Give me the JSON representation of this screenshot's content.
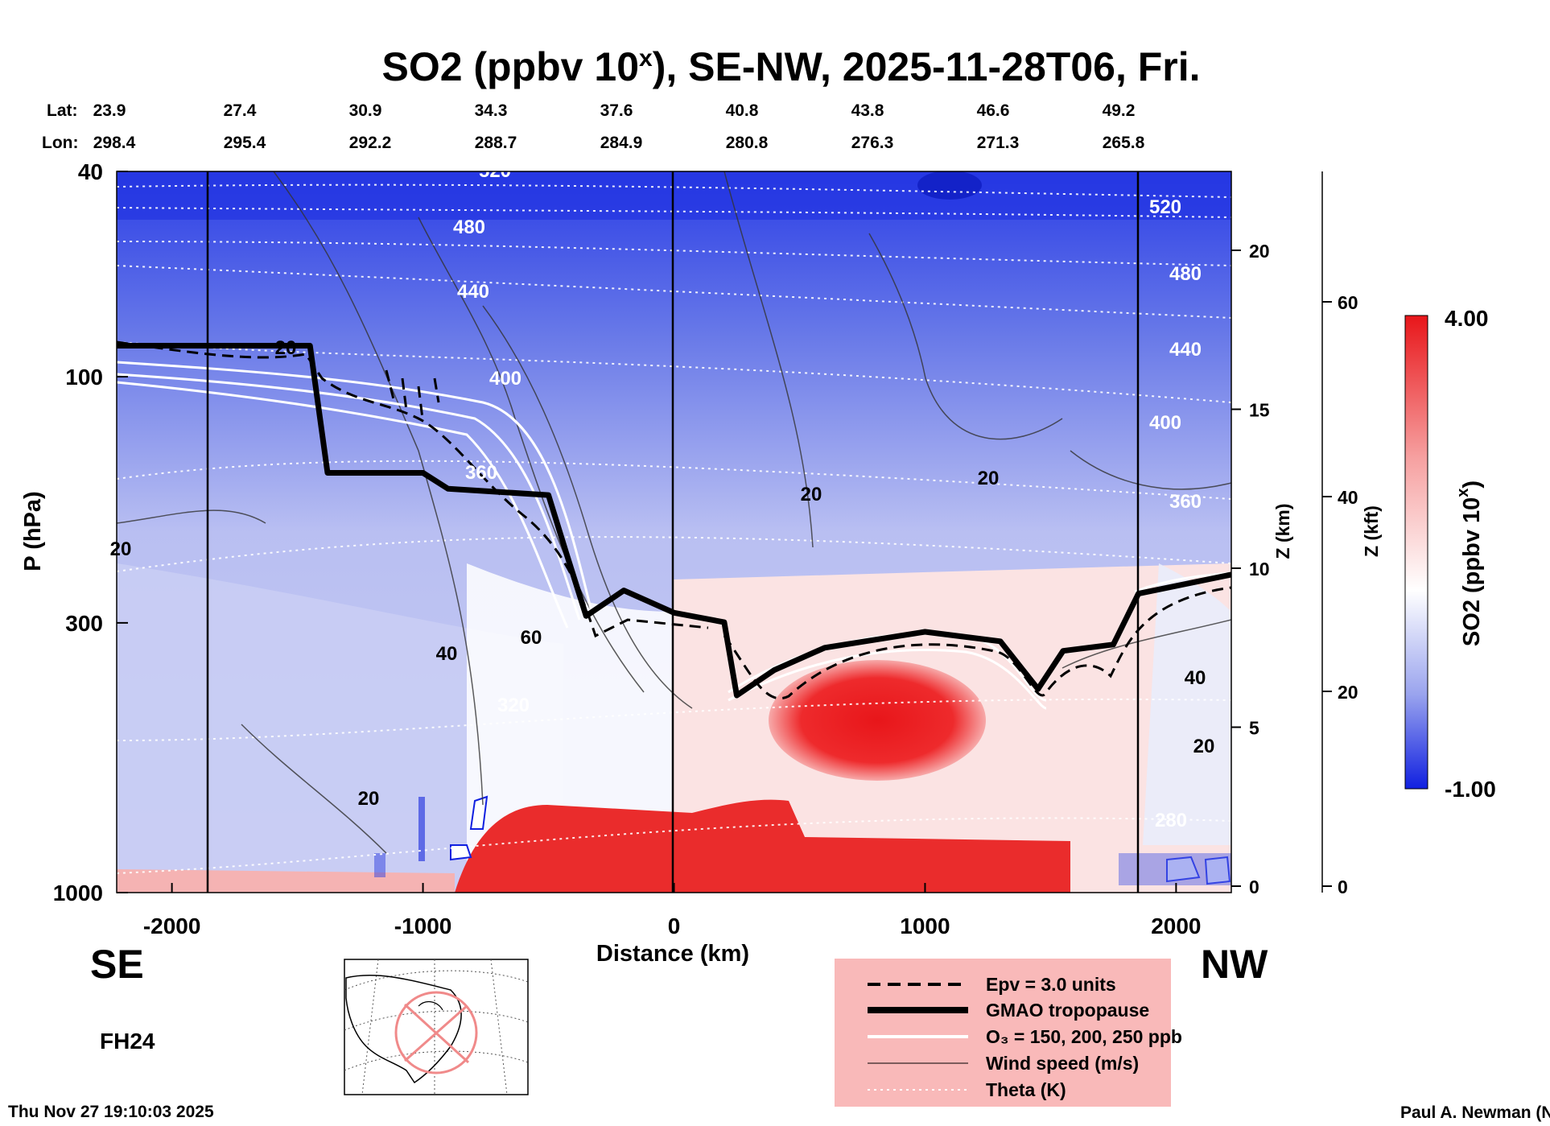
{
  "chart_data": {
    "type": "heatmap",
    "title": "SO2 (ppbv 10^x), SE-NW, 2025-11-28T06, Fri.",
    "title_parts": {
      "main": "SO2 (ppbv 10",
      "sup": "x",
      "rest": "), SE-NW, 2025-11-28T06, Fri."
    },
    "lat_label": "Lat:",
    "lon_label": "Lon:",
    "lat_values": [
      "23.9",
      "27.4",
      "30.9",
      "34.3",
      "37.6",
      "40.8",
      "43.8",
      "46.6",
      "49.2"
    ],
    "lon_values": [
      "298.4",
      "295.4",
      "292.2",
      "288.7",
      "284.9",
      "280.8",
      "276.3",
      "271.3",
      "265.8"
    ],
    "xlabel": "Distance (km)",
    "xlim": [
      -2220,
      2220
    ],
    "xticks": [
      -2000,
      -1000,
      0,
      1000,
      2000
    ],
    "xtick_labels": [
      "-2000",
      "-1000",
      "0",
      "1000",
      "2000"
    ],
    "ylabel": "P (hPa)",
    "ylim": [
      1000,
      40
    ],
    "yticks": [
      40,
      100,
      300,
      1000
    ],
    "ytick_labels": [
      "40",
      "100",
      "300",
      "1000"
    ],
    "z_km_label": "Z (km)",
    "z_km_ticks": [
      0,
      5,
      10,
      15,
      20
    ],
    "z_km_labels": [
      "0",
      "5",
      "10",
      "15",
      "20"
    ],
    "z_kft_label": "Z (kft)",
    "z_kft_ticks": [
      0,
      20,
      40,
      60
    ],
    "z_kft_labels": [
      "0",
      "20",
      "40",
      "60"
    ],
    "colorbar": {
      "label": "SO2 (ppbv 10^x)",
      "label_main": "SO2 (ppbv 10",
      "label_sup": "x",
      "label_rest": ")",
      "min": -1.0,
      "max": 4.0,
      "min_label": "-1.00",
      "max_label": "4.00"
    },
    "theta_labels": [
      "520",
      "480",
      "440",
      "400",
      "360",
      "320",
      "280"
    ],
    "wind_labels": [
      "20",
      "40",
      "60"
    ],
    "tropopause_km": [
      [
        -2220,
        17.0
      ],
      [
        -1450,
        17.0
      ],
      [
        -1380,
        13.0
      ],
      [
        -1000,
        13.0
      ],
      [
        -900,
        12.5
      ],
      [
        -500,
        12.3
      ],
      [
        -430,
        10.5
      ],
      [
        -350,
        8.5
      ],
      [
        -200,
        9.3
      ],
      [
        0,
        8.6
      ],
      [
        200,
        8.3
      ],
      [
        250,
        6.0
      ],
      [
        400,
        6.8
      ],
      [
        600,
        7.5
      ],
      [
        1000,
        8.0
      ],
      [
        1300,
        7.7
      ],
      [
        1450,
        6.2
      ],
      [
        1550,
        7.4
      ],
      [
        1750,
        7.6
      ],
      [
        1850,
        9.2
      ],
      [
        2220,
        9.8
      ]
    ],
    "so2_field": [
      {
        "x0": -2220,
        "x1": 2220,
        "z0": 12,
        "z1": 24,
        "value": -0.9
      },
      {
        "x0": -2220,
        "x1": -400,
        "z0": 0.5,
        "z1": 12,
        "value": -0.4
      },
      {
        "x0": 1500,
        "x1": 2220,
        "z0": 4,
        "z1": 12,
        "value": -0.3
      },
      {
        "x0": -300,
        "x1": 200,
        "z0": 0.5,
        "z1": 9,
        "value": 0.5
      },
      {
        "x0": 350,
        "x1": 1400,
        "z0": 4,
        "z1": 7.2,
        "value": 3.8
      },
      {
        "x0": 300,
        "x1": 1500,
        "z0": 0.4,
        "z1": 2,
        "value": 3.2
      },
      {
        "x0": -900,
        "x1": 350,
        "z0": 0.2,
        "z1": 1.6,
        "value": 3.9
      }
    ],
    "legend": {
      "entries": [
        {
          "label": "Epv = 3.0 units",
          "style": "dashed"
        },
        {
          "label": "GMAO tropopause",
          "style": "thick"
        },
        {
          "label": "O₃ = 150, 200, 250 ppb",
          "style": "white"
        },
        {
          "label": "Wind speed (m/s)",
          "style": "thin"
        },
        {
          "label": "Theta (K)",
          "style": "dotted"
        }
      ],
      "location": "bottom-center"
    },
    "left_direction": "SE",
    "right_direction": "NW",
    "forecast_hour": "FH24",
    "timestamp": "Thu Nov 27 19:10:03 2025",
    "author": "Paul A. Newman (NASA"
  },
  "colors": {
    "red": "#e8161a",
    "blue": "#1d2fe0",
    "legend_bg": "#f9b9b9"
  }
}
